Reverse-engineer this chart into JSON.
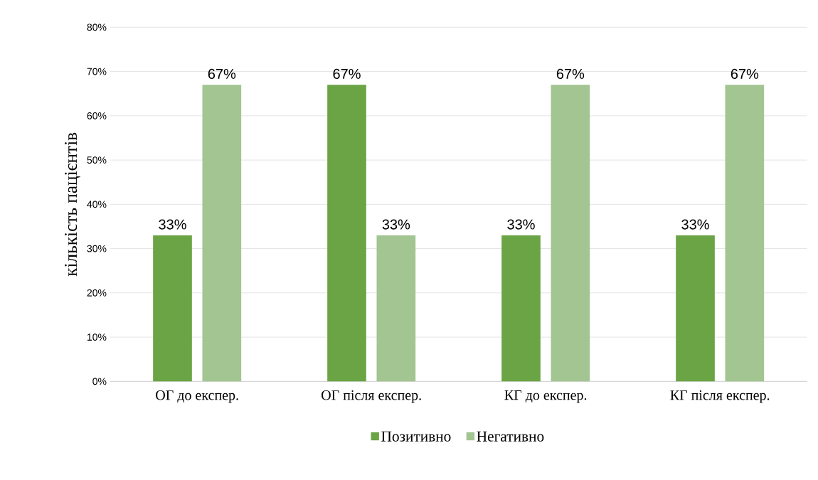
{
  "chart_data": {
    "type": "bar",
    "ylabel": "кількість пацієнтів",
    "categories": [
      "ОГ до експер.",
      "ОГ після експер.",
      "КГ до експер.",
      "КГ після експер."
    ],
    "series": [
      {
        "name": "Позитивно",
        "color": "#6aa444",
        "values": [
          33,
          67,
          33,
          33
        ],
        "value_labels": [
          "33%",
          "67%",
          "33%",
          "33%"
        ]
      },
      {
        "name": "Негативно",
        "color": "#a2c591",
        "values": [
          67,
          33,
          67,
          67
        ],
        "value_labels": [
          "67%",
          "33%",
          "67%",
          "67%"
        ]
      }
    ],
    "ylim": [
      0,
      80
    ],
    "yticks": [
      {
        "value": 0,
        "label": "0%"
      },
      {
        "value": 10,
        "label": "10%"
      },
      {
        "value": 20,
        "label": "20%"
      },
      {
        "value": 30,
        "label": "30%"
      },
      {
        "value": 40,
        "label": "40%"
      },
      {
        "value": 50,
        "label": "50%"
      },
      {
        "value": 60,
        "label": "60%"
      },
      {
        "value": 70,
        "label": "70%"
      },
      {
        "value": 80,
        "label": "80%"
      }
    ],
    "grid": "y",
    "legend": "bottom"
  }
}
